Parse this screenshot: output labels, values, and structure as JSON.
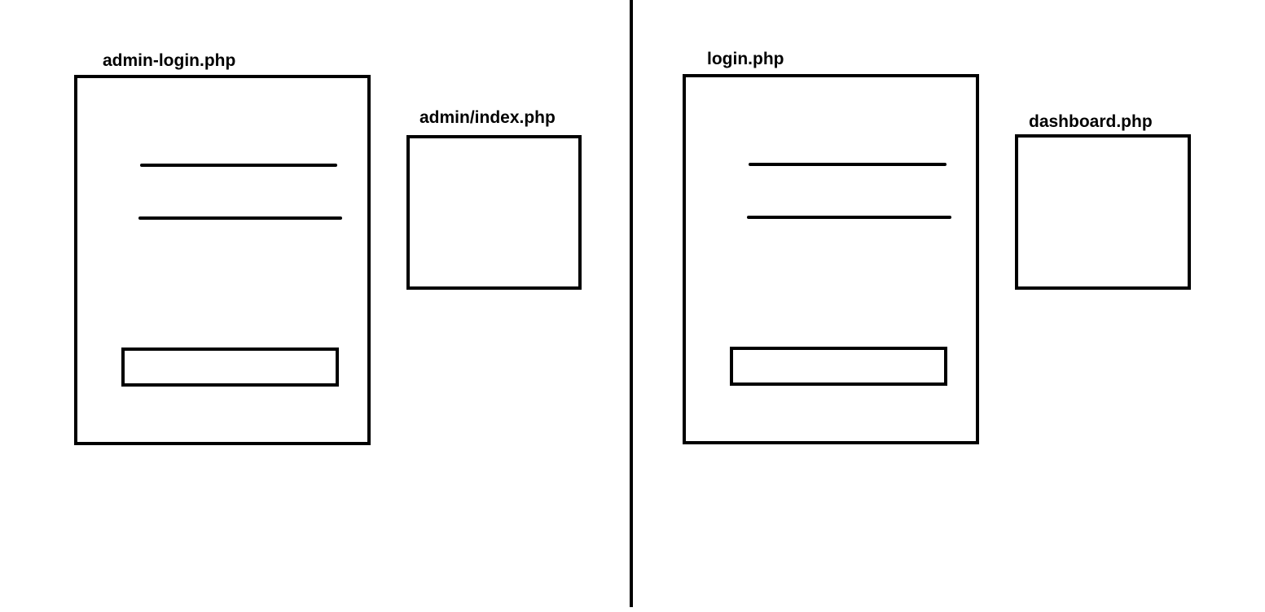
{
  "left_group": {
    "login_page": {
      "label": "admin-login.php"
    },
    "target_page": {
      "label": "admin/index.php"
    }
  },
  "right_group": {
    "login_page": {
      "label": "login.php"
    },
    "target_page": {
      "label": "dashboard.php"
    }
  }
}
